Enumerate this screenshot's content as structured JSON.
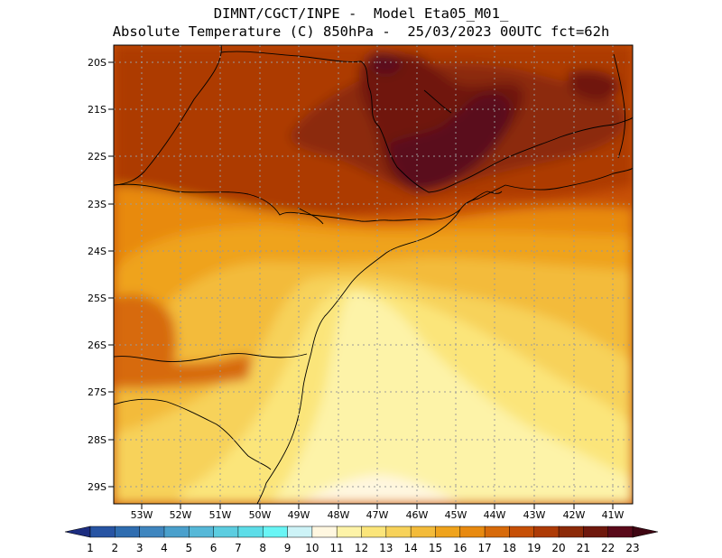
{
  "header": {
    "line1": "DIMNT/CGCT/INPE -  Model Eta05_M01_",
    "line2": "Absolute Temperature (C) 850hPa -  25/03/2023 00UTC fct=62h"
  },
  "axes": {
    "lat_labels": [
      "20S",
      "21S",
      "22S",
      "23S",
      "24S",
      "25S",
      "26S",
      "27S",
      "28S",
      "29S"
    ],
    "lon_labels": [
      "53W",
      "52W",
      "51W",
      "50W",
      "49W",
      "48W",
      "47W",
      "46W",
      "45W",
      "44W",
      "43W",
      "42W",
      "41W"
    ]
  },
  "colorbar": {
    "labels": [
      "1",
      "2",
      "3",
      "4",
      "5",
      "6",
      "7",
      "8",
      "9",
      "10",
      "11",
      "12",
      "13",
      "14",
      "15",
      "16",
      "17",
      "18",
      "19",
      "20",
      "21",
      "22",
      "23"
    ],
    "colors": [
      "#1f3a93",
      "#2754a3",
      "#2f6db0",
      "#3f86bf",
      "#4aa0cc",
      "#56b8d8",
      "#5ccde0",
      "#5ddde8",
      "#69f5f5",
      "#cdf3f7",
      "#fff7e0",
      "#fdf3a8",
      "#fbe57a",
      "#f7d25a",
      "#f3bb3a",
      "#efa31c",
      "#e88a10",
      "#d76a0a",
      "#c64f06",
      "#ad3a05",
      "#8c2a08",
      "#6f180d",
      "#5a0a1a"
    ],
    "low_arrow_color": "#1c2d80",
    "high_arrow_color": "#3f0512"
  },
  "map": {
    "background_color": "#c64f06",
    "gridline_style": "dotted"
  }
}
